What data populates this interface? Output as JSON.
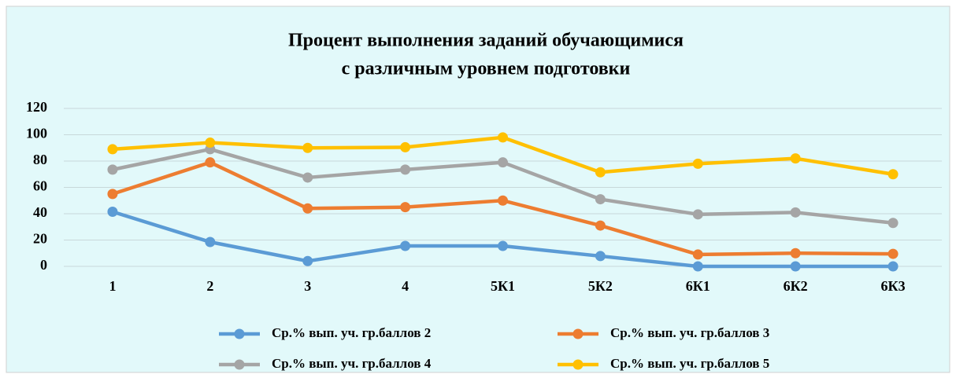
{
  "chart_data": {
    "type": "line",
    "title": [
      "Процент выполнения заданий обучающимися",
      "с различным уровнем подготовки"
    ],
    "categories": [
      "1",
      "2",
      "3",
      "4",
      "5К1",
      "5К2",
      "6К1",
      "6К2",
      "6К3"
    ],
    "series": [
      {
        "name": "Ср.% вып. уч. гр.баллов 2",
        "color": "#5b9bd5",
        "values": [
          41.5,
          18.5,
          4,
          15.5,
          15.5,
          7.8,
          0,
          0,
          0
        ]
      },
      {
        "name": "Ср.% вып. уч. гр.баллов 3",
        "color": "#ed7d31",
        "values": [
          55,
          79,
          44,
          45,
          50,
          31,
          9,
          10,
          9.5
        ]
      },
      {
        "name": "Ср.% вып. уч. гр.баллов 4",
        "color": "#a5a5a5",
        "values": [
          73.5,
          89,
          67.5,
          73.5,
          79,
          51,
          39.5,
          41,
          33
        ]
      },
      {
        "name": "Ср.% вып. уч. гр.баллов 5",
        "color": "#ffc000",
        "values": [
          89,
          94,
          90,
          90.5,
          98,
          71.5,
          78,
          82,
          70
        ]
      }
    ],
    "ylim": [
      0,
      120
    ],
    "yticks": [
      0,
      20,
      40,
      60,
      80,
      100,
      120
    ],
    "grid": true
  }
}
